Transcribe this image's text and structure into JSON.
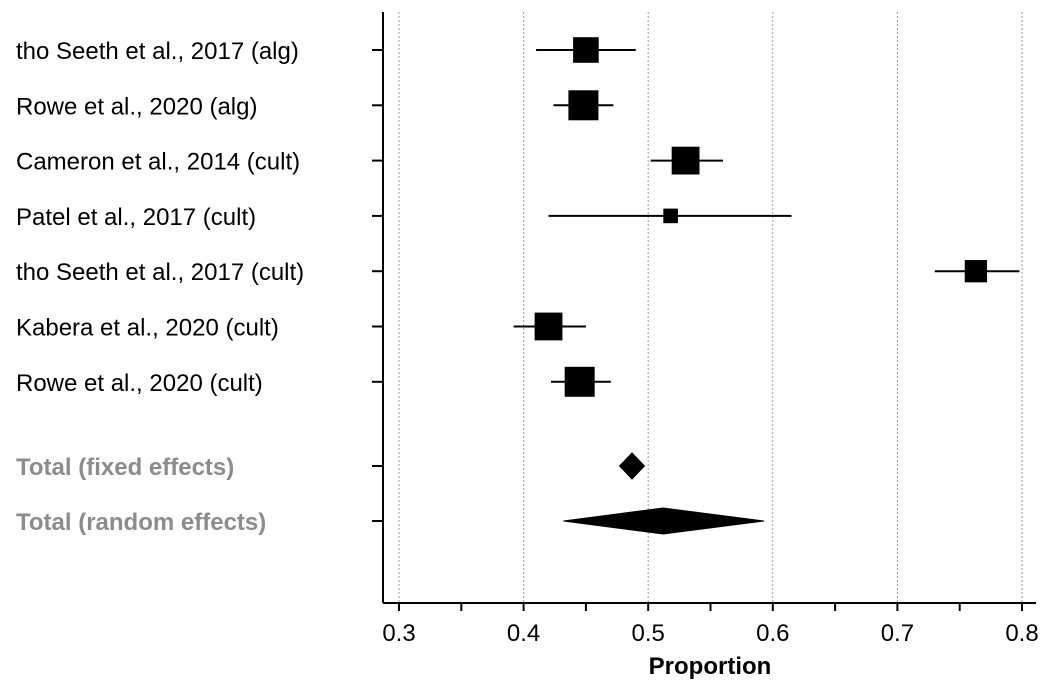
{
  "chart_data": {
    "type": "forest",
    "xlabel": "Proportion",
    "xlim": [
      0.29,
      0.81
    ],
    "xticks": [
      0.3,
      0.4,
      0.5,
      0.6,
      0.7,
      0.8
    ],
    "grid": true,
    "studies": [
      {
        "label": "tho Seeth et al., 2017 (alg)",
        "estimate": 0.45,
        "ci_low": 0.41,
        "ci_high": 0.49,
        "weight": 0.8
      },
      {
        "label": "Rowe et al., 2020 (alg)",
        "estimate": 0.448,
        "ci_low": 0.424,
        "ci_high": 0.472,
        "weight": 1.0
      },
      {
        "label": "Cameron et al., 2014 (cult)",
        "estimate": 0.53,
        "ci_low": 0.502,
        "ci_high": 0.56,
        "weight": 0.9
      },
      {
        "label": "Patel et al., 2017 (cult)",
        "estimate": 0.518,
        "ci_low": 0.42,
        "ci_high": 0.615,
        "weight": 0.3
      },
      {
        "label": "tho Seeth et al., 2017 (cult)",
        "estimate": 0.763,
        "ci_low": 0.73,
        "ci_high": 0.798,
        "weight": 0.65
      },
      {
        "label": "Kabera et al., 2020 (cult)",
        "estimate": 0.42,
        "ci_low": 0.392,
        "ci_high": 0.45,
        "weight": 0.9
      },
      {
        "label": "Rowe et al., 2020 (cult)",
        "estimate": 0.445,
        "ci_low": 0.422,
        "ci_high": 0.47,
        "weight": 1.0
      }
    ],
    "totals": [
      {
        "label": "Total (fixed effects)",
        "estimate": 0.487,
        "ci_low": 0.477,
        "ci_high": 0.497
      },
      {
        "label": "Total (random effects)",
        "estimate": 0.512,
        "ci_low": 0.432,
        "ci_high": 0.593
      }
    ]
  }
}
